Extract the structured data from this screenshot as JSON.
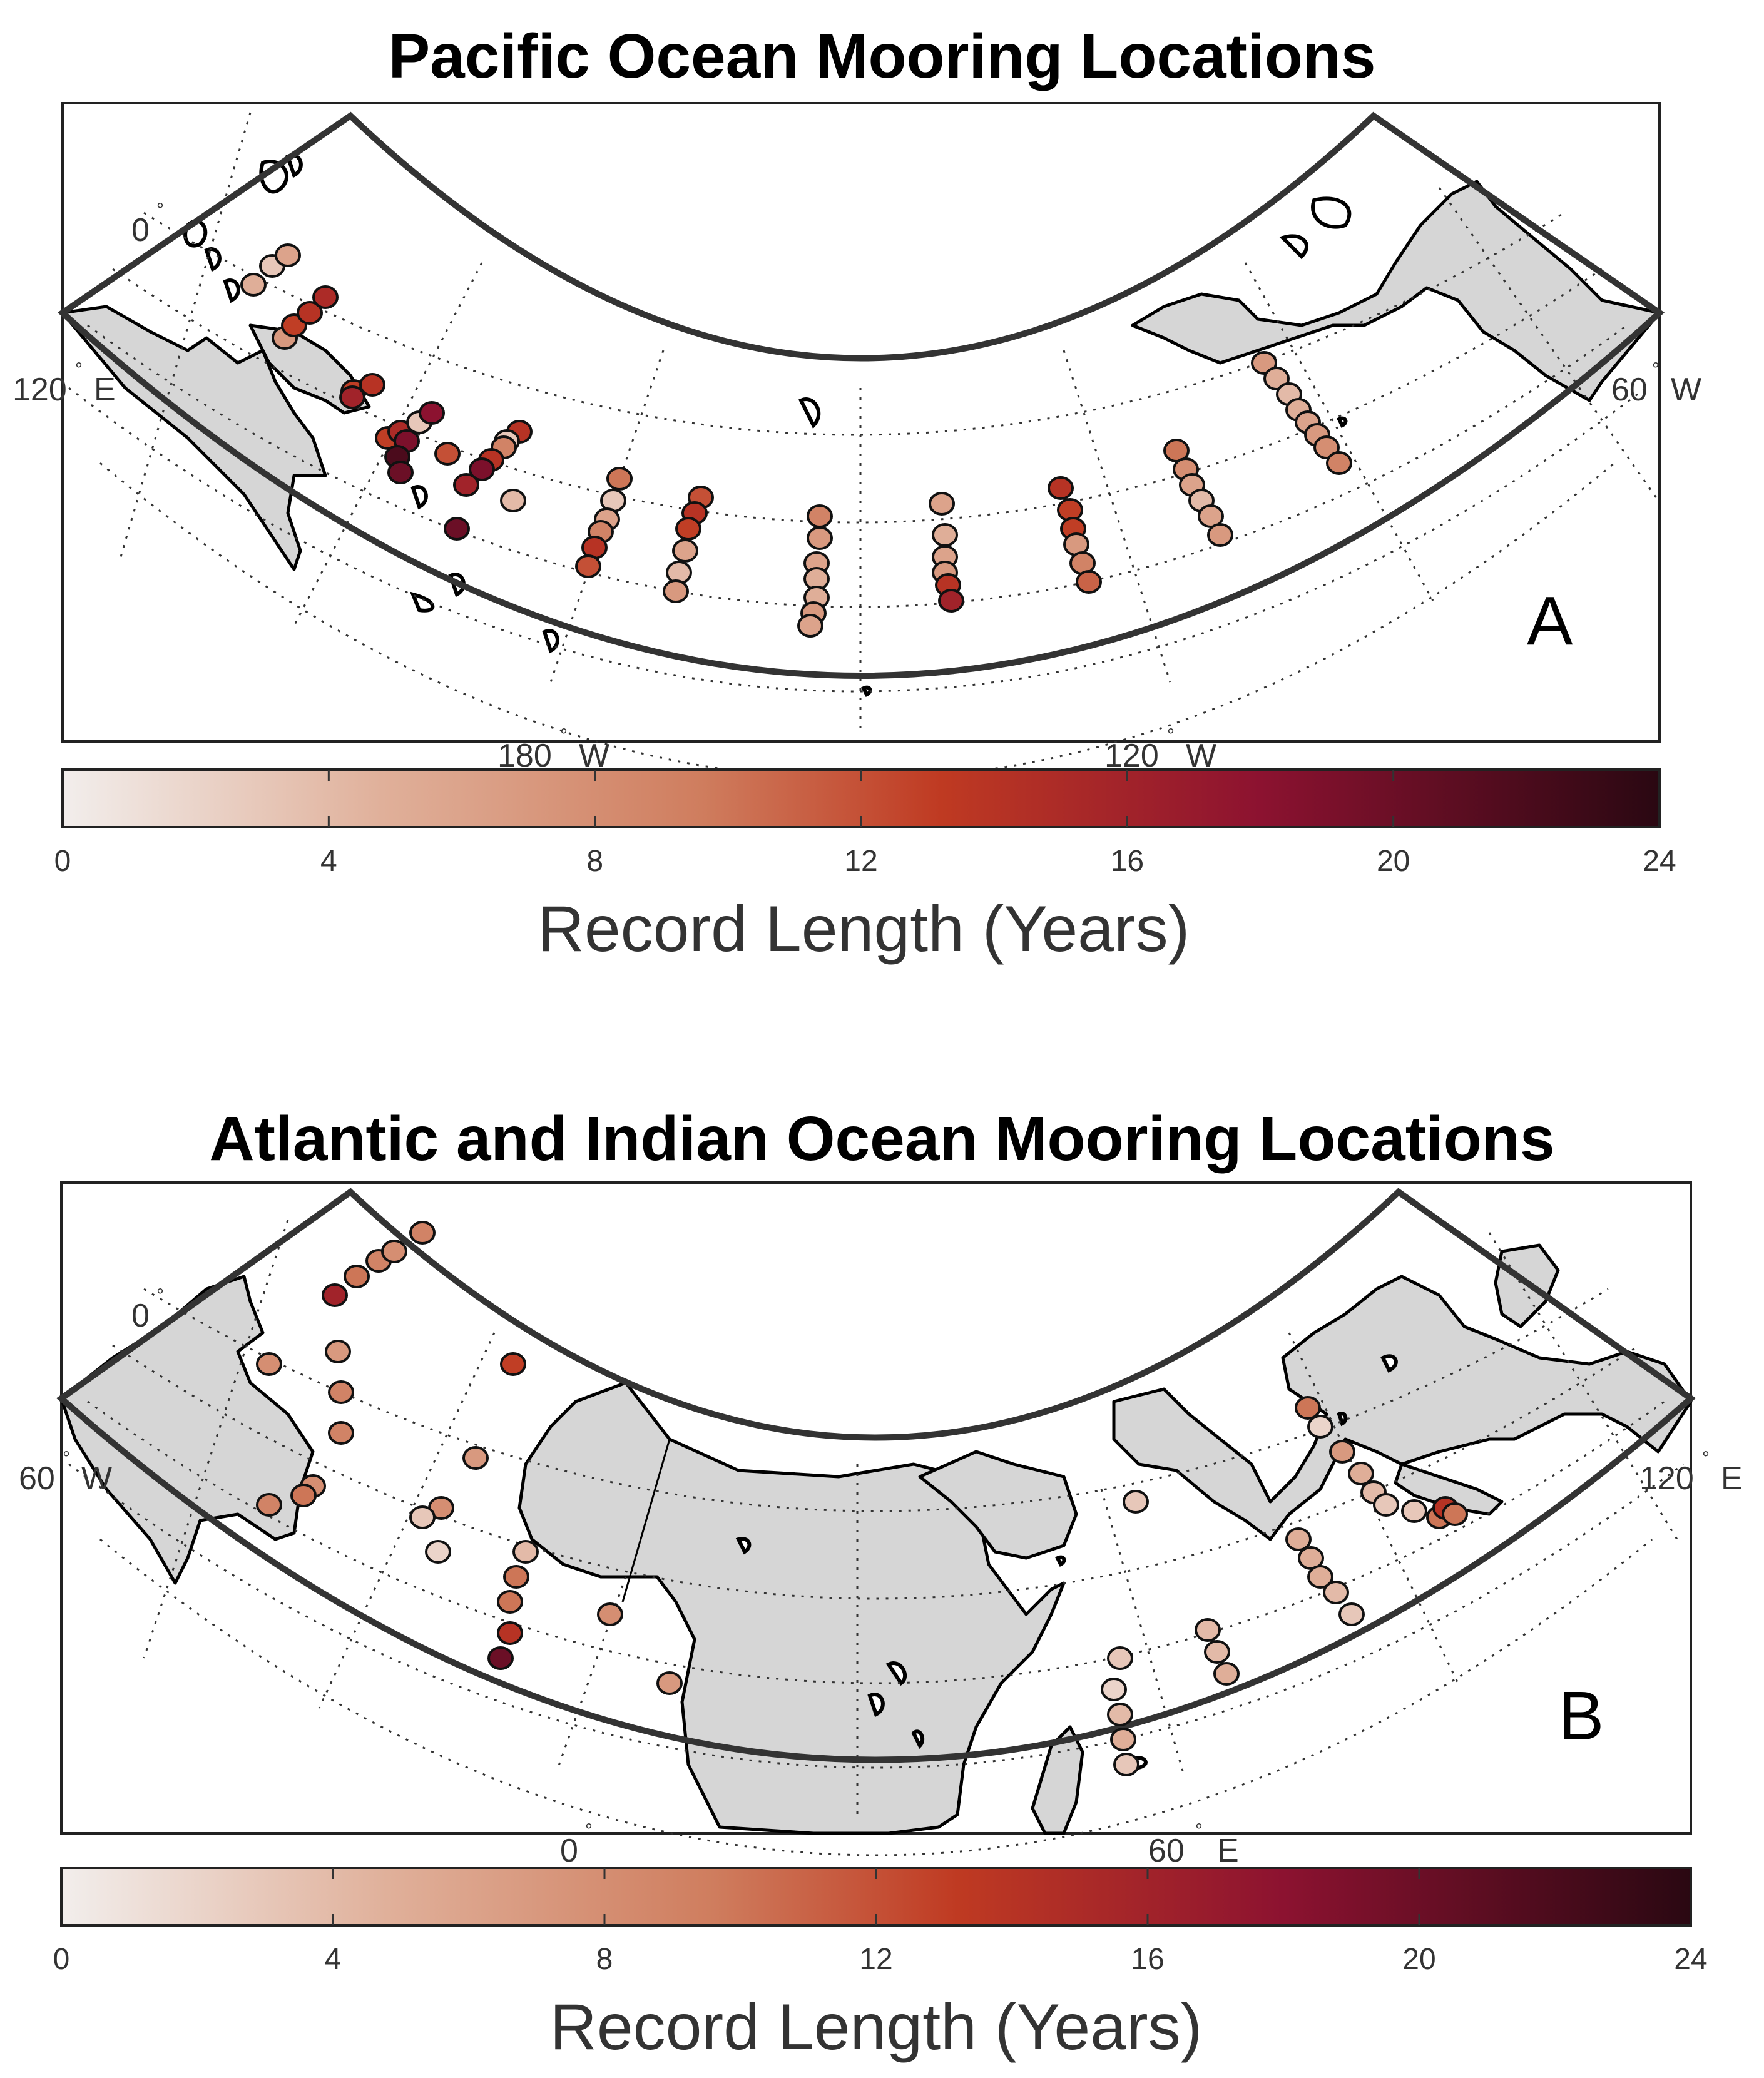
{
  "colormap": {
    "stops": [
      "#f2eeec",
      "#e0b09a",
      "#cf7d5e",
      "#bf3a22",
      "#8c1230",
      "#2a0812"
    ],
    "range": [
      0,
      24
    ]
  },
  "panels": [
    {
      "title": "Pacific Ocean Mooring Locations",
      "letter": "A",
      "lat_label": "0",
      "lon_left_label": "120",
      "lon_left_dir": "E",
      "lon_right_label": "60",
      "lon_right_dir": "W",
      "bottom_labels": [
        {
          "value": "180",
          "dir": "W"
        },
        {
          "value": "120",
          "dir": "W"
        }
      ],
      "colorbar": {
        "ticks": [
          "0",
          "4",
          "8",
          "12",
          "16",
          "20",
          "24"
        ],
        "label": "Record Length (Years)"
      },
      "moorings_record_years": [
        5,
        3,
        6,
        7,
        13,
        14,
        15,
        13,
        14,
        16,
        13,
        15,
        3,
        18,
        19,
        22,
        20,
        14,
        3,
        9,
        14,
        19,
        12,
        16,
        20,
        4,
        10,
        3,
        6,
        9,
        14,
        12,
        12,
        14,
        13,
        6,
        4,
        7,
        9,
        7,
        6,
        5,
        5,
        7,
        6,
        6,
        5,
        6,
        7,
        14,
        16,
        14,
        13,
        13,
        7,
        9,
        11,
        10,
        8,
        6,
        4,
        6,
        7,
        7,
        5,
        4,
        5,
        6,
        7,
        8,
        9,
        10,
        11
      ]
    },
    {
      "title": "Atlantic and Indian Ocean Mooring Locations",
      "letter": "B",
      "lat_label": "0",
      "lon_left_label": "60",
      "lon_left_dir": "W",
      "lon_right_label": "120",
      "lon_right_dir": "E",
      "bottom_labels": [
        {
          "value": "0",
          "dir": ""
        },
        {
          "value": "60",
          "dir": "E"
        }
      ],
      "colorbar": {
        "ticks": [
          "0",
          "4",
          "8",
          "12",
          "16",
          "20",
          "24"
        ],
        "label": "Record Length (Years)"
      },
      "moorings_record_years": [
        8,
        16,
        10,
        9,
        8,
        9,
        7,
        9,
        9,
        8,
        9,
        10,
        13,
        7,
        8,
        3,
        2,
        4,
        10,
        10,
        14,
        20,
        8,
        7,
        10,
        2,
        7,
        5,
        4,
        3,
        3,
        10,
        14,
        10,
        3,
        5,
        5,
        5,
        4,
        3,
        4,
        4,
        5,
        3,
        2,
        4,
        5,
        3
      ]
    }
  ]
}
